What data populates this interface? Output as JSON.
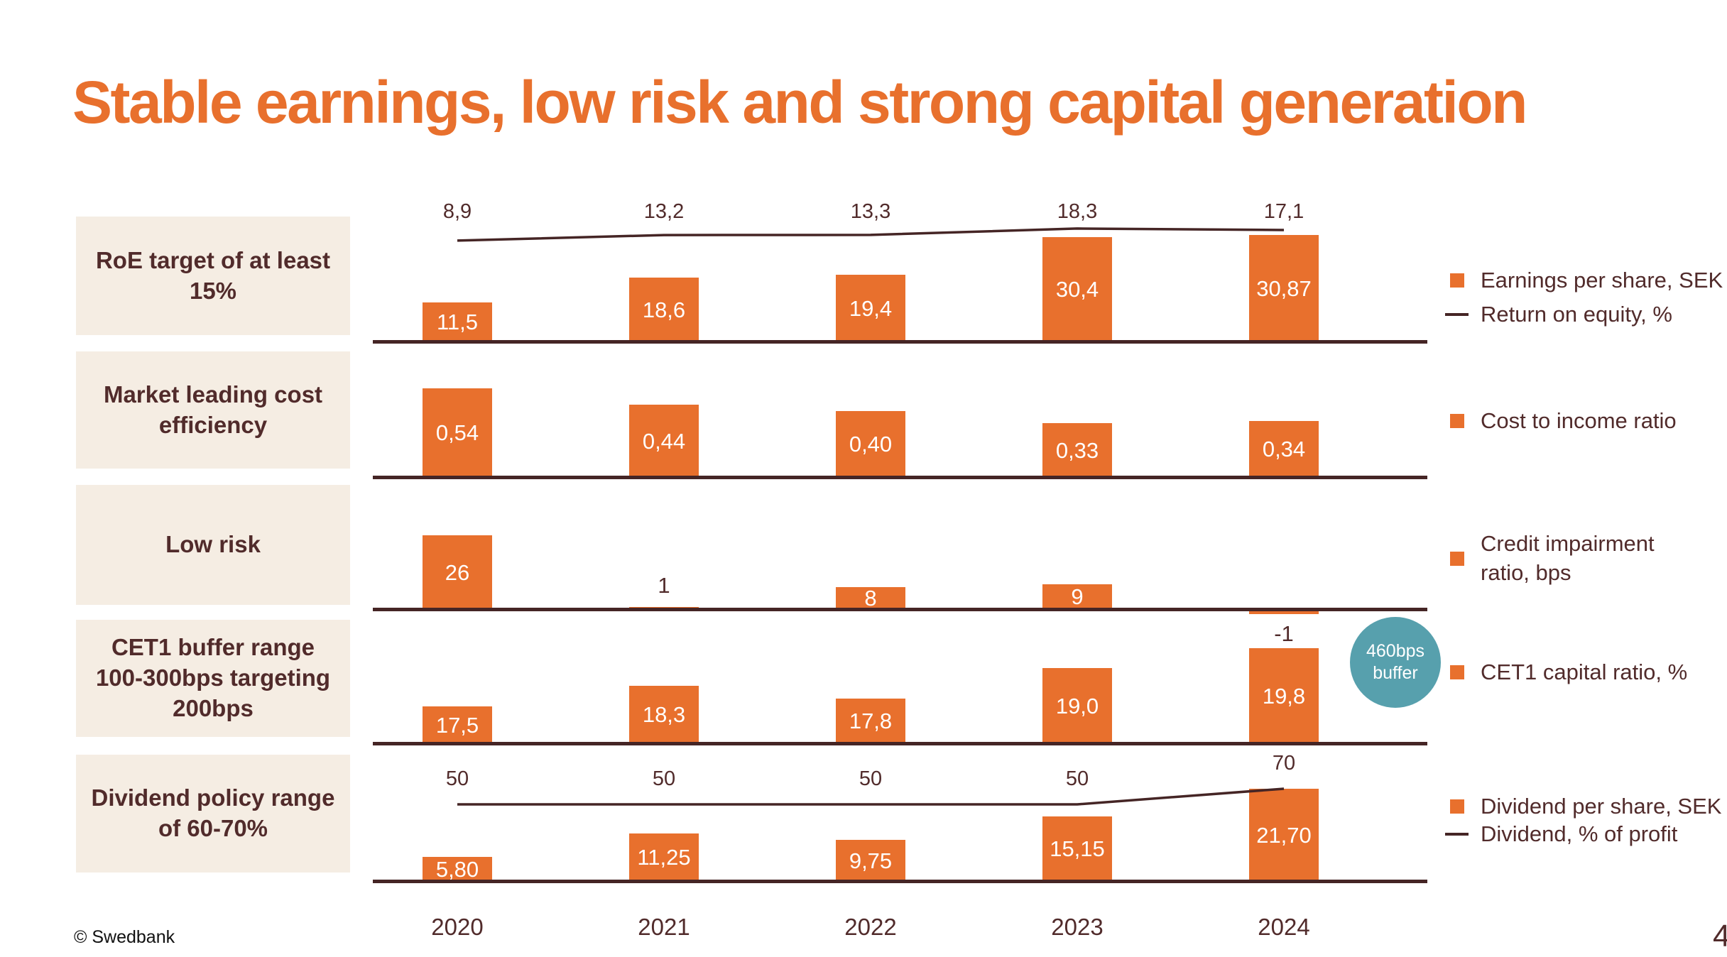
{
  "slide": {
    "title": "Stable earnings, low risk and strong capital generation",
    "footer": "© Swedbank",
    "page_number": "4"
  },
  "colors": {
    "accent_orange": "#E8702D",
    "text_brown": "#512B2B",
    "axis_brown": "#452525",
    "box_beige": "#F5EDE3",
    "badge_teal": "#57A0AD",
    "bar_label_white": "#FFFFFF"
  },
  "badge": {
    "line1": "460bps",
    "line2": "buffer"
  },
  "years": [
    "2020",
    "2021",
    "2022",
    "2023",
    "2024"
  ],
  "chart_data": [
    {
      "type": "bar+line",
      "row_label": "RoE target of at least 15%",
      "categories": [
        "2020",
        "2021",
        "2022",
        "2023",
        "2024"
      ],
      "bar_series": {
        "name": "Earnings per share, SEK",
        "values": [
          11.5,
          18.6,
          19.4,
          30.4,
          30.87
        ],
        "labels": [
          "11,5",
          "18,6",
          "19,4",
          "30,4",
          "30,87"
        ]
      },
      "line_series": {
        "name": "Return on equity, %",
        "values": [
          8.9,
          13.2,
          13.3,
          18.3,
          17.1
        ],
        "labels": [
          "8,9",
          "13,2",
          "13,3",
          "18,3",
          "17,1"
        ]
      },
      "legend": [
        {
          "marker": "square",
          "label": "Earnings per share, SEK"
        },
        {
          "marker": "line",
          "label": "Return on equity, %"
        }
      ]
    },
    {
      "type": "bar",
      "row_label": "Market leading cost efficiency",
      "categories": [
        "2020",
        "2021",
        "2022",
        "2023",
        "2024"
      ],
      "bar_series": {
        "name": "Cost to income ratio",
        "values": [
          0.54,
          0.44,
          0.4,
          0.33,
          0.34
        ],
        "labels": [
          "0,54",
          "0,44",
          "0,40",
          "0,33",
          "0,34"
        ]
      },
      "legend": [
        {
          "marker": "square",
          "label": "Cost to income ratio"
        }
      ]
    },
    {
      "type": "bar",
      "row_label": "Low risk",
      "categories": [
        "2020",
        "2021",
        "2022",
        "2023",
        "2024"
      ],
      "bar_series": {
        "name": "Credit impairment ratio, bps",
        "values": [
          26,
          1,
          8,
          9,
          -1
        ],
        "labels": [
          "26",
          "1",
          "8",
          "9",
          "-1"
        ]
      },
      "legend": [
        {
          "marker": "square",
          "label": "Credit impairment\n ratio, bps"
        }
      ]
    },
    {
      "type": "bar",
      "row_label": "CET1 buffer range 100-300bps targeting 200bps",
      "categories": [
        "2020",
        "2021",
        "2022",
        "2023",
        "2024"
      ],
      "bar_series": {
        "name": "CET1 capital ratio, %",
        "values": [
          17.5,
          18.3,
          17.8,
          19.0,
          19.8
        ],
        "labels": [
          "17,5",
          "18,3",
          "17,8",
          "19,0",
          "19,8"
        ]
      },
      "annotation": "460bps buffer",
      "legend": [
        {
          "marker": "square",
          "label": "CET1 capital ratio, %"
        }
      ]
    },
    {
      "type": "bar+line",
      "row_label": "Dividend policy range of 60-70%",
      "categories": [
        "2020",
        "2021",
        "2022",
        "2023",
        "2024"
      ],
      "bar_series": {
        "name": "Dividend per share, SEK",
        "values": [
          5.8,
          11.25,
          9.75,
          15.15,
          21.7
        ],
        "labels": [
          "5,80",
          "11,25",
          "9,75",
          "15,15",
          "21,70"
        ]
      },
      "line_series": {
        "name": "Dividend, % of profit",
        "values": [
          50,
          50,
          50,
          50,
          70
        ],
        "labels": [
          "50",
          "50",
          "50",
          "50",
          "70"
        ]
      },
      "legend": [
        {
          "marker": "square",
          "label": "Dividend per share, SEK"
        },
        {
          "marker": "line",
          "label": "Dividend, % of profit"
        }
      ]
    }
  ]
}
